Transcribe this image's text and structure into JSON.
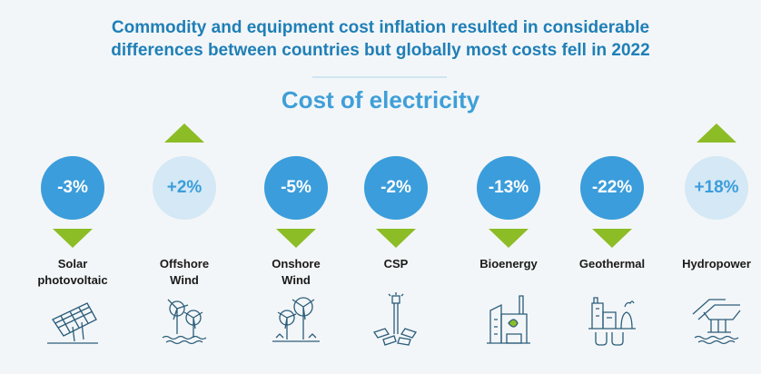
{
  "headline": {
    "line1": "Commodity and equipment cost inflation resulted in considerable",
    "line2": "differences between countries but globally most costs fell in 2022"
  },
  "subtitle": "Cost of electricity",
  "technologies": [
    {
      "change": "-3%",
      "direction": "down",
      "label_line1": "Solar",
      "label_line2": "photovoltaic",
      "icon": "solar-panel-icon"
    },
    {
      "change": "+2%",
      "direction": "up",
      "label_line1": "Offshore",
      "label_line2": "Wind",
      "icon": "offshore-wind-icon"
    },
    {
      "change": "-5%",
      "direction": "down",
      "label_line1": "Onshore",
      "label_line2": "Wind",
      "icon": "onshore-wind-icon"
    },
    {
      "change": "-2%",
      "direction": "down",
      "label_line1": "CSP",
      "label_line2": "",
      "icon": "csp-tower-icon"
    },
    {
      "change": "-13%",
      "direction": "down",
      "label_line1": "Bioenergy",
      "label_line2": "",
      "icon": "bioenergy-plant-icon"
    },
    {
      "change": "-22%",
      "direction": "down",
      "label_line1": "Geothermal",
      "label_line2": "",
      "icon": "geothermal-plant-icon"
    },
    {
      "change": "+18%",
      "direction": "up",
      "label_line1": "Hydropower",
      "label_line2": "",
      "icon": "hydropower-dam-icon"
    }
  ],
  "colors": {
    "headline": "#1f7fb7",
    "subtitle": "#3f9fd8",
    "decrease_circle": "#3b9ddb",
    "increase_circle": "#d4e8f5",
    "arrow": "#8cbd26",
    "icon_line": "#2b5d7a"
  }
}
